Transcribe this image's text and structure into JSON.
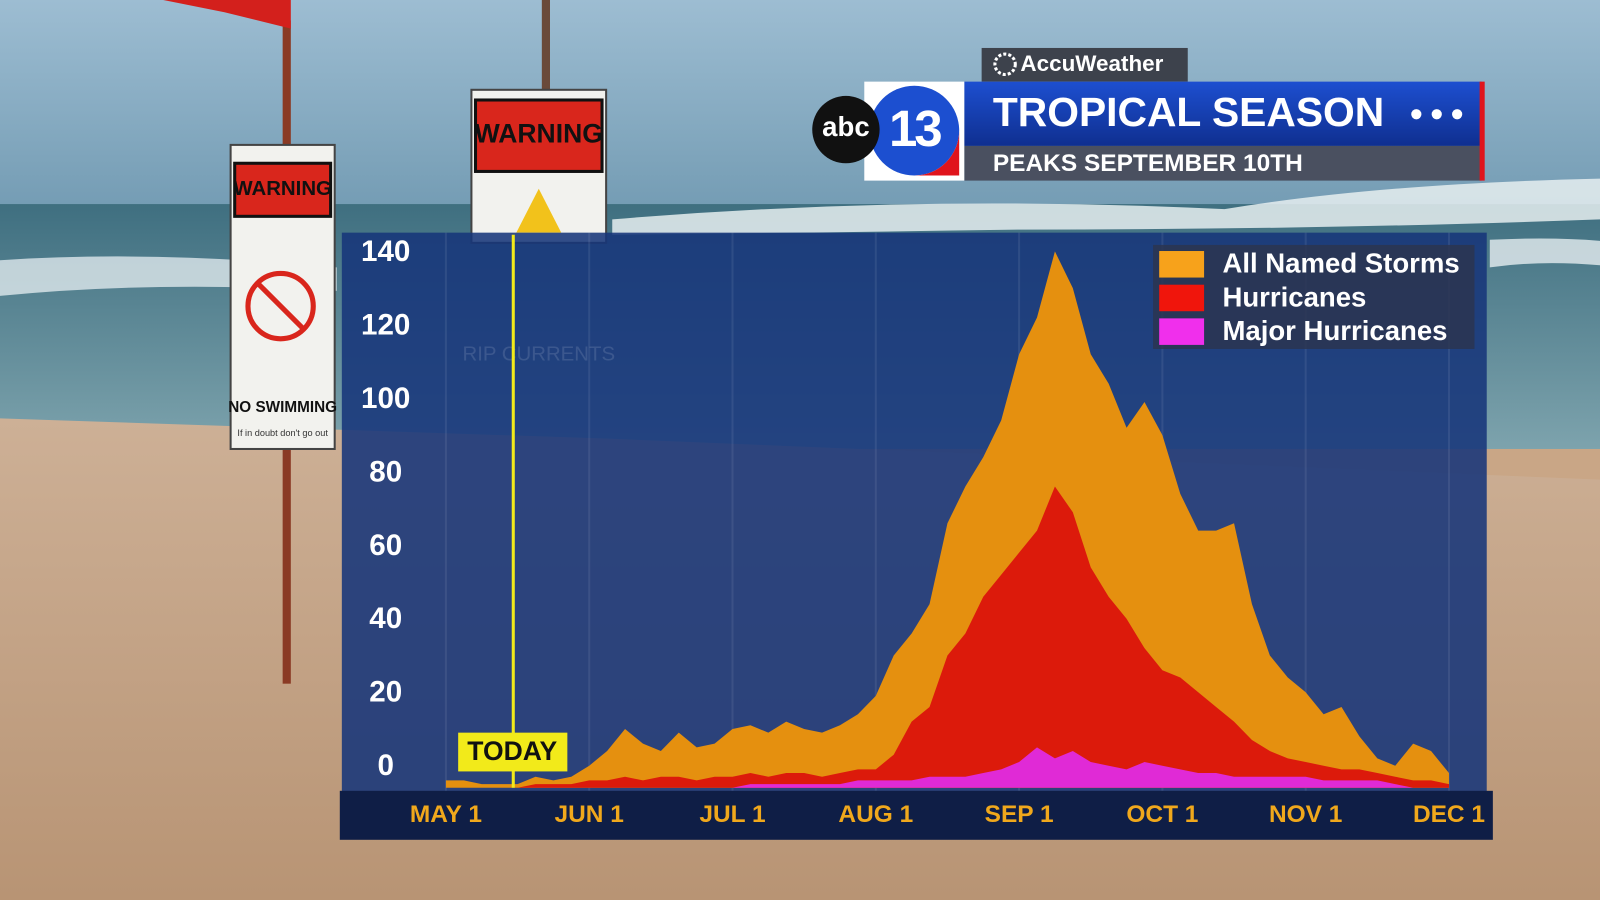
{
  "header": {
    "brand": "AccuWeather",
    "network": "abc",
    "channel": "13",
    "title": "TROPICAL SEASON",
    "subtitle": "PEAKS SEPTEMBER 10TH"
  },
  "signs": [
    {
      "header": "WARNING",
      "text": "NO SWIMMING",
      "note": "If in doubt don't go out"
    },
    {
      "header": "WARNING",
      "text": "RIP CURRENTS"
    }
  ],
  "chart_data": {
    "type": "area",
    "categories": [
      "MAY 1",
      null,
      null,
      null,
      null,
      null,
      null,
      null,
      "JUN 1",
      null,
      null,
      null,
      null,
      null,
      null,
      null,
      "JUL 1",
      null,
      null,
      null,
      null,
      null,
      null,
      null,
      "AUG 1",
      null,
      null,
      null,
      null,
      null,
      null,
      null,
      "SEP 1",
      null,
      null,
      null,
      null,
      null,
      null,
      null,
      "OCT 1",
      null,
      null,
      null,
      null,
      null,
      null,
      null,
      "NOV 1",
      null,
      null,
      null,
      null,
      null,
      null,
      null,
      "DEC 1"
    ],
    "series": [
      {
        "name": "All Named Storms",
        "color": "#e5900f",
        "legend_color": "#f7a21b",
        "values": [
          2,
          2,
          1,
          1,
          1,
          3,
          2,
          3,
          6,
          10,
          16,
          12,
          10,
          15,
          11,
          12,
          16,
          17,
          15,
          18,
          16,
          15,
          17,
          20,
          25,
          36,
          42,
          50,
          72,
          82,
          90,
          100,
          118,
          128,
          146,
          136,
          118,
          110,
          98,
          105,
          96,
          80,
          70,
          70,
          72,
          50,
          36,
          30,
          26,
          20,
          22,
          14,
          8,
          6,
          12,
          10,
          4
        ]
      },
      {
        "name": "Hurricanes",
        "color": "#dc1a0b",
        "legend_color": "#f0150c",
        "values": [
          0,
          0,
          0,
          0,
          0,
          1,
          1,
          1,
          2,
          2,
          3,
          2,
          3,
          3,
          2,
          3,
          3,
          4,
          3,
          4,
          4,
          3,
          4,
          5,
          5,
          9,
          18,
          22,
          36,
          42,
          52,
          58,
          64,
          70,
          82,
          75,
          60,
          52,
          46,
          38,
          32,
          30,
          26,
          22,
          18,
          13,
          10,
          8,
          7,
          6,
          5,
          5,
          4,
          3,
          2,
          2,
          1
        ]
      },
      {
        "name": "Major Hurricanes",
        "color": "#e02ad6",
        "legend_color": "#f02fec",
        "values": [
          0,
          0,
          0,
          0,
          0,
          0,
          0,
          0,
          0,
          0,
          0,
          0,
          0,
          0,
          0,
          0,
          0,
          1,
          1,
          1,
          1,
          1,
          1,
          2,
          2,
          2,
          2,
          3,
          3,
          3,
          4,
          5,
          7,
          11,
          8,
          10,
          7,
          6,
          5,
          7,
          6,
          5,
          4,
          4,
          3,
          3,
          3,
          3,
          3,
          2,
          2,
          2,
          2,
          1,
          0,
          0,
          0
        ]
      }
    ],
    "ylim": [
      0,
      150
    ],
    "yticks": [
      0,
      20,
      40,
      60,
      80,
      100,
      120,
      140
    ],
    "annotation": "TODAY",
    "legend": "upper right"
  }
}
